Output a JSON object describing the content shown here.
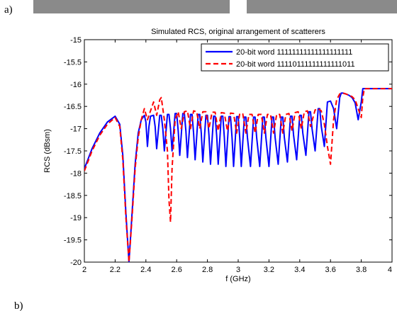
{
  "panels": {
    "top_label": "a)",
    "bottom_label": "b)"
  },
  "colors": {
    "band": "#8a8a8a",
    "series1": "#0000ff",
    "series2": "#ff0000",
    "axis": "#000000"
  },
  "chart_data": {
    "type": "line",
    "title": "Simulated RCS, original arrangement of scatterers",
    "xlabel": "f (GHz)",
    "ylabel": "RCS (dBsm)",
    "xlim": [
      2,
      4
    ],
    "ylim": [
      -20,
      -15
    ],
    "xticks": [
      "2",
      "2.2",
      "2.4",
      "2.6",
      "2.8",
      "3",
      "3.2",
      "3.4",
      "3.6",
      "3.8",
      "4"
    ],
    "yticks": [
      "-15",
      "-15.5",
      "-16",
      "-16.5",
      "-17",
      "-17.5",
      "-18",
      "-18.5",
      "-19",
      "-19.5",
      "-20"
    ],
    "grid": false,
    "legend_position": "top-right",
    "series": [
      {
        "name": "20-bit word 11111111111111111111",
        "style": "solid",
        "x": [
          2.0,
          2.05,
          2.1,
          2.15,
          2.2,
          2.23,
          2.25,
          2.27,
          2.29,
          2.31,
          2.33,
          2.35,
          2.37,
          2.39,
          2.4,
          2.41,
          2.42,
          2.43,
          2.45,
          2.46,
          2.47,
          2.49,
          2.5,
          2.51,
          2.52,
          2.54,
          2.55,
          2.56,
          2.57,
          2.59,
          2.6,
          2.61,
          2.62,
          2.64,
          2.65,
          2.66,
          2.67,
          2.69,
          2.7,
          2.71,
          2.72,
          2.74,
          2.75,
          2.76,
          2.77,
          2.79,
          2.8,
          2.81,
          2.82,
          2.84,
          2.85,
          2.86,
          2.87,
          2.89,
          2.9,
          2.91,
          2.92,
          2.94,
          2.95,
          2.96,
          2.97,
          2.99,
          3.0,
          3.01,
          3.02,
          3.04,
          3.05,
          3.06,
          3.08,
          3.1,
          3.11,
          3.12,
          3.14,
          3.16,
          3.17,
          3.18,
          3.2,
          3.22,
          3.23,
          3.24,
          3.26,
          3.28,
          3.29,
          3.3,
          3.32,
          3.34,
          3.35,
          3.36,
          3.38,
          3.4,
          3.41,
          3.42,
          3.44,
          3.46,
          3.47,
          3.48,
          3.5,
          3.52,
          3.53,
          3.54,
          3.56,
          3.58,
          3.6,
          3.62,
          3.64,
          3.66,
          3.67,
          3.68,
          3.7,
          3.72,
          3.74,
          3.76,
          3.78,
          3.8,
          3.81,
          3.82,
          3.83,
          3.84,
          3.86,
          3.9,
          4.0
        ],
        "y": [
          -17.9,
          -17.45,
          -17.1,
          -16.85,
          -16.72,
          -16.9,
          -17.6,
          -18.9,
          -20.0,
          -18.9,
          -17.8,
          -17.1,
          -16.8,
          -16.7,
          -16.85,
          -17.4,
          -16.95,
          -16.72,
          -16.7,
          -16.95,
          -17.45,
          -16.7,
          -16.7,
          -17.0,
          -17.5,
          -16.68,
          -16.68,
          -17.0,
          -17.5,
          -16.66,
          -16.66,
          -17.05,
          -17.6,
          -16.66,
          -16.66,
          -17.05,
          -17.65,
          -16.68,
          -16.68,
          -17.1,
          -17.7,
          -16.68,
          -16.68,
          -17.1,
          -17.75,
          -16.7,
          -16.7,
          -17.15,
          -17.8,
          -16.72,
          -16.72,
          -17.15,
          -17.8,
          -16.72,
          -16.72,
          -17.2,
          -17.85,
          -16.73,
          -16.73,
          -17.2,
          -17.85,
          -16.73,
          -16.73,
          -17.2,
          -17.85,
          -16.74,
          -16.74,
          -17.2,
          -17.85,
          -16.74,
          -16.74,
          -17.2,
          -17.85,
          -16.74,
          -16.74,
          -17.2,
          -17.85,
          -16.74,
          -16.74,
          -17.2,
          -17.8,
          -16.74,
          -16.74,
          -17.2,
          -17.75,
          -16.72,
          -16.72,
          -17.15,
          -17.7,
          -16.7,
          -16.7,
          -17.1,
          -17.6,
          -16.62,
          -16.62,
          -17.0,
          -17.5,
          -16.55,
          -16.55,
          -16.95,
          -17.4,
          -16.4,
          -16.38,
          -16.55,
          -17.0,
          -16.3,
          -16.2,
          -16.2,
          -16.22,
          -16.25,
          -16.3,
          -16.42,
          -16.8,
          -16.4,
          -16.1,
          -16.1,
          -16.1,
          -16.1,
          -16.1,
          -16.1,
          -16.1
        ]
      },
      {
        "name": "20-bit word 11110111111111111011",
        "style": "dashed",
        "x": [
          2.0,
          2.05,
          2.1,
          2.15,
          2.2,
          2.23,
          2.25,
          2.27,
          2.29,
          2.31,
          2.33,
          2.35,
          2.37,
          2.39,
          2.41,
          2.43,
          2.45,
          2.47,
          2.49,
          2.5,
          2.52,
          2.54,
          2.55,
          2.56,
          2.57,
          2.59,
          2.61,
          2.63,
          2.65,
          2.67,
          2.69,
          2.71,
          2.73,
          2.75,
          2.77,
          2.79,
          2.81,
          2.83,
          2.85,
          2.87,
          2.89,
          2.91,
          2.93,
          2.95,
          2.97,
          2.99,
          3.01,
          3.03,
          3.05,
          3.07,
          3.09,
          3.11,
          3.13,
          3.15,
          3.17,
          3.19,
          3.21,
          3.23,
          3.25,
          3.27,
          3.29,
          3.31,
          3.33,
          3.35,
          3.37,
          3.39,
          3.41,
          3.43,
          3.45,
          3.47,
          3.5,
          3.52,
          3.54,
          3.56,
          3.58,
          3.6,
          3.62,
          3.64,
          3.66,
          3.68,
          3.7,
          3.72,
          3.74,
          3.76,
          3.78,
          3.8,
          3.81,
          3.82,
          3.83,
          3.84,
          3.86,
          3.9,
          4.0
        ],
        "y": [
          -17.95,
          -17.5,
          -17.15,
          -16.9,
          -16.75,
          -16.95,
          -17.7,
          -19.0,
          -20.0,
          -19.0,
          -17.9,
          -17.2,
          -16.8,
          -16.55,
          -16.8,
          -16.6,
          -16.4,
          -16.7,
          -16.35,
          -16.3,
          -16.8,
          -17.5,
          -18.6,
          -19.1,
          -17.9,
          -16.8,
          -16.62,
          -17.0,
          -16.62,
          -16.6,
          -17.0,
          -16.6,
          -16.62,
          -17.0,
          -16.62,
          -16.62,
          -17.0,
          -16.63,
          -16.63,
          -17.05,
          -16.64,
          -16.65,
          -17.05,
          -16.65,
          -16.66,
          -17.1,
          -16.66,
          -16.67,
          -17.1,
          -16.68,
          -16.68,
          -17.1,
          -16.68,
          -16.68,
          -17.1,
          -16.68,
          -16.68,
          -17.1,
          -16.68,
          -16.68,
          -17.1,
          -16.68,
          -16.66,
          -17.05,
          -16.64,
          -16.62,
          -17.0,
          -16.62,
          -16.6,
          -16.95,
          -16.58,
          -16.55,
          -16.6,
          -16.9,
          -17.4,
          -17.8,
          -16.8,
          -16.35,
          -16.22,
          -16.2,
          -16.22,
          -16.25,
          -16.28,
          -16.35,
          -16.55,
          -16.75,
          -16.3,
          -16.1,
          -16.1,
          -16.1,
          -16.1,
          -16.1,
          -16.1
        ]
      }
    ]
  }
}
